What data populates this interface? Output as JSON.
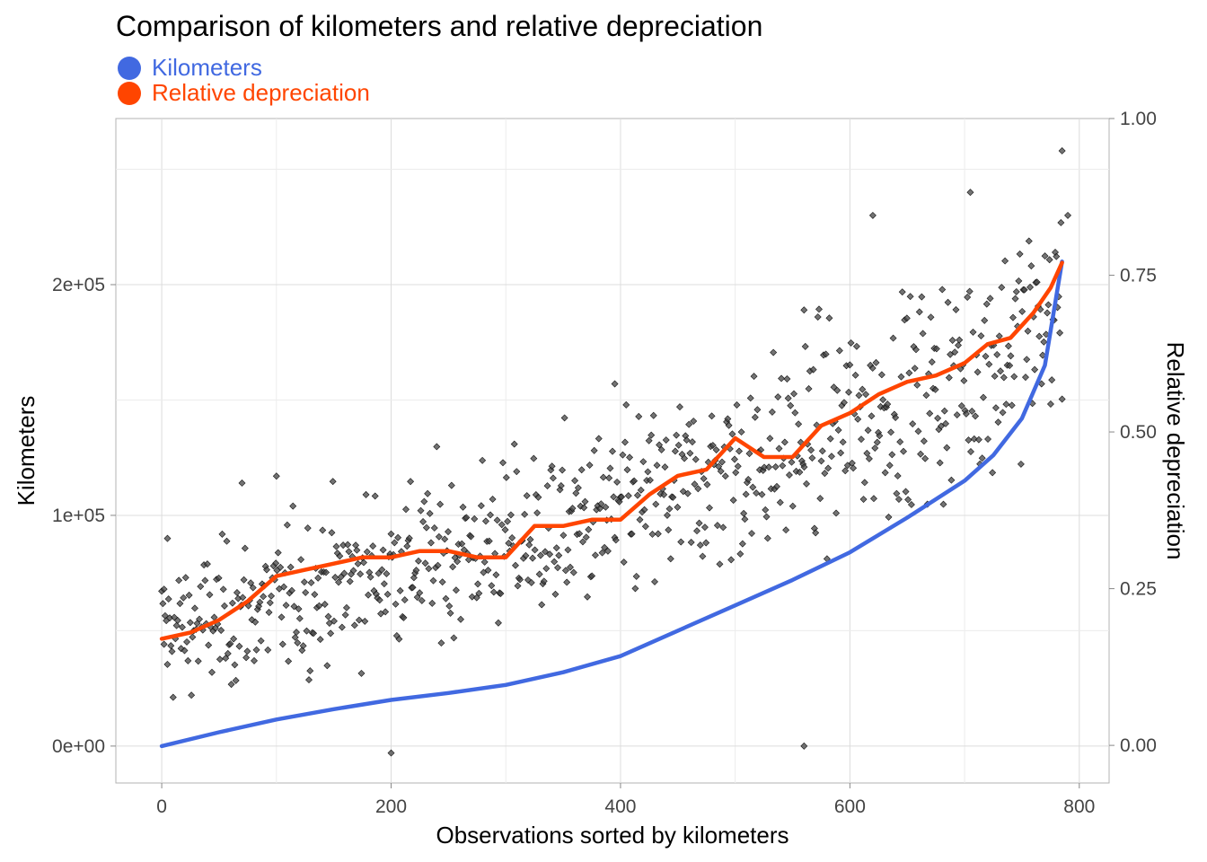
{
  "chart_data": {
    "type": "scatter",
    "title": "Comparison of kilometers and relative depreciation",
    "xlabel": "Observations sorted by kilometers",
    "ylabel": "Kilometers",
    "y2label": "Relative depreciation",
    "xlim": [
      -40,
      826
    ],
    "ylim": [
      -16000,
      272000
    ],
    "y2lim": [
      -0.06,
      1.0
    ],
    "x_ticks": [
      "0",
      "200",
      "400",
      "600",
      "800"
    ],
    "y_ticks": [
      "0e+00",
      "1e+05",
      "2e+05"
    ],
    "y2_ticks": [
      "0.00",
      "0.25",
      "0.50",
      "0.75",
      "1.00"
    ],
    "grid": true,
    "legend_position": "top-left",
    "series": [
      {
        "name": "Kilometers",
        "type": "line",
        "axis": "left",
        "color": "#4169E1",
        "x": [
          0,
          50,
          100,
          150,
          200,
          250,
          300,
          350,
          400,
          450,
          500,
          550,
          600,
          650,
          700,
          725,
          750,
          770,
          785
        ],
        "y": [
          0,
          6000,
          11500,
          16000,
          20000,
          23000,
          26500,
          32000,
          39000,
          50000,
          61000,
          72000,
          84000,
          99000,
          115000,
          126000,
          142000,
          165000,
          210000
        ]
      },
      {
        "name": "Relative depreciation",
        "type": "line",
        "axis": "right",
        "color": "#FF4500",
        "x": [
          0,
          25,
          50,
          75,
          100,
          125,
          150,
          175,
          200,
          225,
          250,
          275,
          300,
          325,
          350,
          375,
          400,
          425,
          450,
          475,
          500,
          525,
          550,
          575,
          600,
          625,
          650,
          675,
          700,
          720,
          740,
          760,
          775,
          785
        ],
        "y": [
          0.17,
          0.18,
          0.2,
          0.23,
          0.27,
          0.28,
          0.29,
          0.3,
          0.3,
          0.31,
          0.31,
          0.3,
          0.3,
          0.35,
          0.35,
          0.36,
          0.36,
          0.4,
          0.43,
          0.44,
          0.49,
          0.46,
          0.46,
          0.51,
          0.53,
          0.56,
          0.58,
          0.59,
          0.61,
          0.64,
          0.65,
          0.69,
          0.73,
          0.77
        ]
      }
    ],
    "scatter_points": {
      "name": "",
      "axis": "left",
      "color": "#444444",
      "count": 790,
      "trend": [
        [
          0,
          48000
        ],
        [
          100,
          62000
        ],
        [
          200,
          78000
        ],
        [
          300,
          88000
        ],
        [
          400,
          100000
        ],
        [
          500,
          120000
        ],
        [
          600,
          140000
        ],
        [
          700,
          160000
        ],
        [
          785,
          190000
        ]
      ],
      "spread": 16000,
      "notable": [
        [
          2,
          68000
        ],
        [
          5,
          90000
        ],
        [
          70,
          114000
        ],
        [
          100,
          117000
        ],
        [
          200,
          -3000
        ],
        [
          395,
          157000
        ],
        [
          560,
          0
        ],
        [
          560,
          189000
        ],
        [
          620,
          230000
        ],
        [
          705,
          240000
        ],
        [
          785,
          258000
        ],
        [
          790,
          230000
        ]
      ]
    }
  }
}
